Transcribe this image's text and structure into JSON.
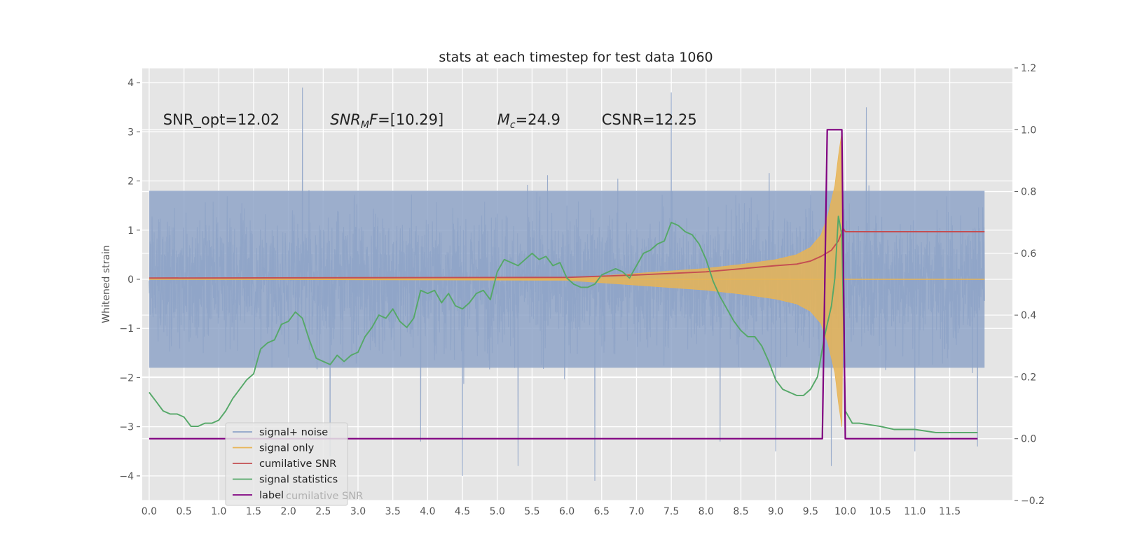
{
  "chart_data": {
    "type": "line",
    "title": "stats at each timestep for test data 1060",
    "ylabel": "Whitened strain",
    "xlabel": "",
    "xlim": [
      -0.1,
      12.4
    ],
    "ylim": [
      -4.5,
      4.3
    ],
    "y2lim": [
      -0.2,
      1.2
    ],
    "x_ticks": [
      "0.0",
      "0.5",
      "1.0",
      "1.5",
      "2.0",
      "2.5",
      "3.0",
      "3.5",
      "4.0",
      "4.5",
      "5.0",
      "5.5",
      "6.0",
      "6.5",
      "7.0",
      "7.5",
      "8.0",
      "8.5",
      "9.0",
      "9.5",
      "10.0",
      "10.5",
      "11.0",
      "11.5"
    ],
    "y_ticks": [
      "4",
      "3",
      "2",
      "1",
      "0",
      "−1",
      "−2",
      "−3",
      "−4"
    ],
    "y2_ticks": [
      "1.2",
      "1.0",
      "0.8",
      "0.6",
      "0.4",
      "0.2",
      "0.0",
      "−0.2"
    ],
    "grid": true,
    "legend_position": "lower-left",
    "annotations": [
      {
        "text": "SNR_opt=12.02",
        "x": 0.2,
        "y": 3.15
      },
      {
        "text": "SNR_MF=[10.29]",
        "main": "SNR",
        "sub": "M",
        "rest": "F=[10.29]",
        "x": 2.6,
        "y": 3.15
      },
      {
        "text": "M_c=24.9",
        "main": "M",
        "sub": "c",
        "rest": "=24.9",
        "x": 5.0,
        "y": 3.15
      },
      {
        "text": "CSNR=12.25",
        "x": 6.5,
        "y": 3.15
      }
    ],
    "series": [
      {
        "name": "signal+ noise",
        "axis": "left",
        "color": "#8fa4c8",
        "x_range": [
          0,
          12.0
        ],
        "typical_band": [
          -1.8,
          1.8
        ],
        "spikes": [
          {
            "x": 2.2,
            "y": 3.9
          },
          {
            "x": 2.6,
            "y": -3.6
          },
          {
            "x": 3.9,
            "y": -3.3
          },
          {
            "x": 4.5,
            "y": -4.0
          },
          {
            "x": 5.3,
            "y": -3.8
          },
          {
            "x": 6.0,
            "y": 1.5
          },
          {
            "x": 6.4,
            "y": -4.1
          },
          {
            "x": 7.5,
            "y": 3.8
          },
          {
            "x": 8.2,
            "y": -3.3
          },
          {
            "x": 9.0,
            "y": -3.5
          },
          {
            "x": 9.8,
            "y": -3.8
          },
          {
            "x": 10.3,
            "y": 3.5
          },
          {
            "x": 11.0,
            "y": -3.5
          },
          {
            "x": 11.9,
            "y": -3.4
          }
        ]
      },
      {
        "name": "signal only",
        "axis": "left",
        "color": "#e8b455",
        "envelope": [
          [
            0,
            0
          ],
          [
            6.0,
            0.02
          ],
          [
            7.0,
            0.12
          ],
          [
            8.0,
            0.22
          ],
          [
            8.5,
            0.3
          ],
          [
            9.0,
            0.4
          ],
          [
            9.3,
            0.5
          ],
          [
            9.5,
            0.65
          ],
          [
            9.65,
            0.9
          ],
          [
            9.75,
            1.3
          ],
          [
            9.85,
            1.9
          ],
          [
            9.9,
            2.5
          ],
          [
            9.95,
            3.0
          ],
          [
            9.97,
            0
          ],
          [
            12.0,
            0
          ]
        ]
      },
      {
        "name": "cumilative SNR",
        "axis": "right",
        "color": "#c44e52",
        "x": [
          0,
          6.0,
          7.0,
          8.0,
          8.5,
          9.0,
          9.3,
          9.5,
          9.65,
          9.8,
          9.9,
          9.97,
          10.0,
          12.0
        ],
        "y": [
          0.52,
          0.522,
          0.53,
          0.54,
          0.55,
          0.56,
          0.565,
          0.575,
          0.59,
          0.61,
          0.64,
          0.68,
          0.67,
          0.67
        ]
      },
      {
        "name": "signal statistics",
        "axis": "right",
        "color": "#55a868",
        "x": [
          0,
          0.1,
          0.2,
          0.3,
          0.4,
          0.5,
          0.6,
          0.7,
          0.8,
          0.9,
          1.0,
          1.1,
          1.2,
          1.3,
          1.4,
          1.5,
          1.6,
          1.7,
          1.8,
          1.9,
          2.0,
          2.1,
          2.2,
          2.3,
          2.4,
          2.5,
          2.6,
          2.7,
          2.8,
          2.9,
          3.0,
          3.1,
          3.2,
          3.3,
          3.4,
          3.5,
          3.6,
          3.7,
          3.8,
          3.9,
          4.0,
          4.1,
          4.2,
          4.3,
          4.4,
          4.5,
          4.6,
          4.7,
          4.8,
          4.9,
          5.0,
          5.1,
          5.2,
          5.3,
          5.4,
          5.5,
          5.6,
          5.7,
          5.8,
          5.9,
          6.0,
          6.1,
          6.2,
          6.3,
          6.4,
          6.5,
          6.6,
          6.7,
          6.8,
          6.9,
          7.0,
          7.1,
          7.2,
          7.3,
          7.4,
          7.5,
          7.6,
          7.7,
          7.8,
          7.9,
          8.0,
          8.1,
          8.2,
          8.3,
          8.4,
          8.5,
          8.6,
          8.7,
          8.8,
          8.9,
          9.0,
          9.1,
          9.2,
          9.3,
          9.4,
          9.5,
          9.6,
          9.7,
          9.8,
          9.85,
          9.9,
          9.95,
          10.0,
          10.1,
          10.2,
          10.5,
          10.7,
          11.0,
          11.3,
          11.6,
          11.9
        ],
        "y": [
          0.15,
          0.12,
          0.09,
          0.08,
          0.08,
          0.07,
          0.04,
          0.04,
          0.05,
          0.05,
          0.06,
          0.09,
          0.13,
          0.16,
          0.19,
          0.21,
          0.29,
          0.31,
          0.32,
          0.37,
          0.38,
          0.41,
          0.39,
          0.32,
          0.26,
          0.25,
          0.24,
          0.27,
          0.25,
          0.27,
          0.28,
          0.33,
          0.36,
          0.4,
          0.39,
          0.42,
          0.38,
          0.36,
          0.39,
          0.48,
          0.47,
          0.48,
          0.44,
          0.47,
          0.43,
          0.42,
          0.44,
          0.47,
          0.48,
          0.45,
          0.54,
          0.58,
          0.57,
          0.56,
          0.58,
          0.6,
          0.58,
          0.59,
          0.56,
          0.57,
          0.52,
          0.5,
          0.49,
          0.49,
          0.5,
          0.53,
          0.54,
          0.55,
          0.54,
          0.52,
          0.56,
          0.6,
          0.61,
          0.63,
          0.64,
          0.7,
          0.69,
          0.67,
          0.66,
          0.63,
          0.58,
          0.51,
          0.46,
          0.42,
          0.38,
          0.35,
          0.33,
          0.33,
          0.3,
          0.25,
          0.19,
          0.16,
          0.15,
          0.14,
          0.14,
          0.16,
          0.2,
          0.33,
          0.43,
          0.52,
          0.72,
          0.66,
          0.09,
          0.05,
          0.05,
          0.04,
          0.03,
          0.03,
          0.02,
          0.02,
          0.02
        ]
      },
      {
        "name": "label",
        "axis": "right",
        "color": "#800080",
        "x": [
          0,
          9.67,
          9.74,
          9.95,
          10.0,
          11.9
        ],
        "y": [
          0,
          0,
          1.0,
          1.0,
          0,
          0
        ]
      }
    ],
    "legend": [
      {
        "name": "signal+ noise",
        "color": "#8fa4c8"
      },
      {
        "name": "signal only",
        "color": "#e8b455"
      },
      {
        "name": "cumilative SNR",
        "color": "#c44e52"
      },
      {
        "name": "signal statistics",
        "color": "#55a868"
      },
      {
        "name": "label",
        "color": "#800080"
      }
    ],
    "legend_ghost": "cumilative SNR"
  }
}
